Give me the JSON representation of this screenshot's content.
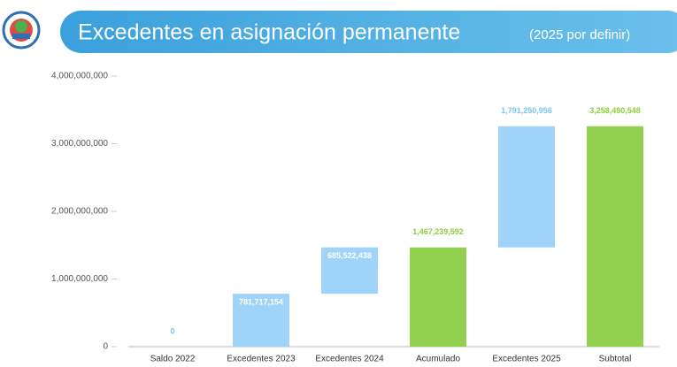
{
  "chart_data": {
    "type": "waterfall",
    "title": "Excedentes en asignación permanente",
    "subtitle": "(2025 por definir)",
    "categories": [
      "Saldo 2022",
      "Excedentes 2023",
      "Excedentes 2024",
      "Acumulado",
      "Excedentes 2025",
      "Subtotal"
    ],
    "values": [
      0,
      781717154,
      685522438,
      1467239592,
      1791250956,
      3258490548
    ],
    "value_labels": [
      "0",
      "781,717,154",
      "685,522,438",
      "1,467,239,592",
      "1,791,250,956",
      "3,258,490,548"
    ],
    "totals": [
      false,
      false,
      false,
      true,
      false,
      true
    ],
    "colors": [
      "#9fd3f7",
      "#9fd3f7",
      "#9fd3f7",
      "#92d050",
      "#9fd3f7",
      "#92d050"
    ],
    "ylim": [
      0,
      4000000000
    ],
    "yticks": [
      0,
      {
        "value": 1000000000,
        "label": "1,000,000,000"
      },
      {
        "value": 2000000000,
        "label": "2,000,000,000"
      },
      {
        "value": 3000000000,
        "label": "3,000,000,000"
      },
      {
        "value": 4000000000,
        "label": "4,000,000,000"
      }
    ]
  }
}
